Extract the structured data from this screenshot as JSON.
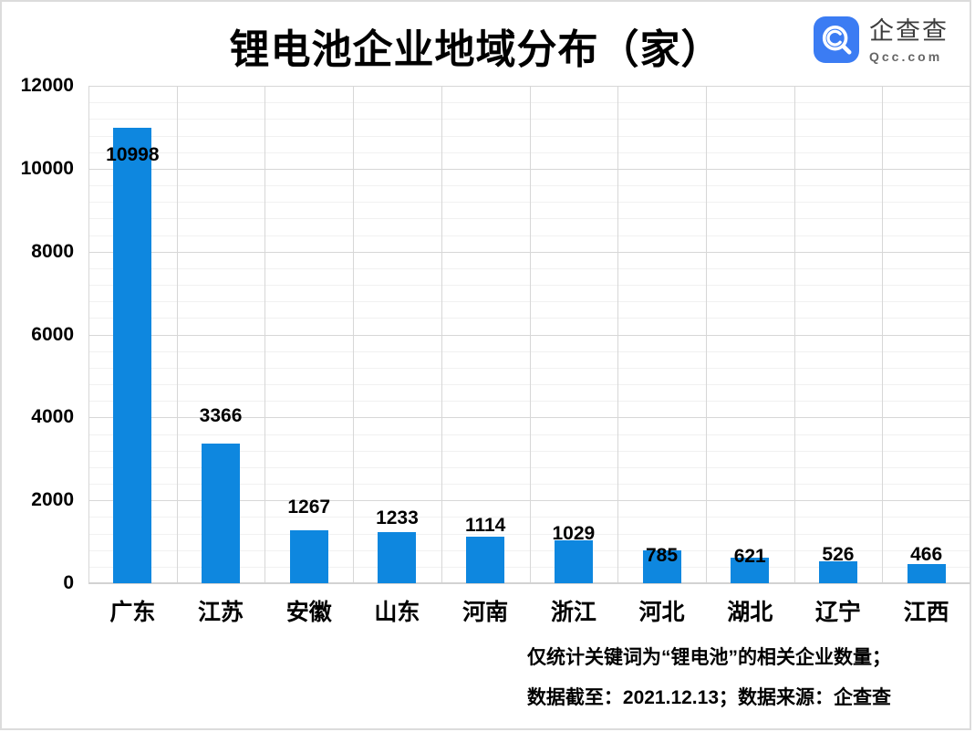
{
  "header": {
    "title": "锂电池企业地域分布（家）",
    "logo": {
      "brand_cn": "企查查",
      "brand_en": "Qcc.com",
      "icon": "magnifier-q-icon",
      "color": "#3B7CF3"
    }
  },
  "chart_data": {
    "type": "bar",
    "title": "锂电池企业地域分布（家）",
    "categories": [
      "广东",
      "江苏",
      "安徽",
      "山东",
      "河南",
      "浙江",
      "河北",
      "湖北",
      "辽宁",
      "江西"
    ],
    "values": [
      10998,
      3366,
      1267,
      1233,
      1114,
      1029,
      785,
      621,
      526,
      466
    ],
    "xlabel": "",
    "ylabel": "",
    "ylim": [
      0,
      12000
    ],
    "y_ticks": [
      0,
      2000,
      4000,
      6000,
      8000,
      10000,
      12000
    ],
    "y_tick_step": 2000,
    "y_minor_step": 400,
    "grid": true,
    "legend_position": "none",
    "bar_color": "#0E87DF",
    "value_labels_shown": true
  },
  "footer": {
    "line1": "仅统计关键词为“锂电池”的相关企业数量；",
    "line2": "数据截至：2021.12.13；数据来源：企查查"
  },
  "colors": {
    "bar": "#0E87DF",
    "grid_major": "#D7D7D7",
    "grid_minor": "#F1F1F1",
    "image_border": "#DCDCDC",
    "logo_blue": "#3B7CF3",
    "text": "#000000"
  }
}
